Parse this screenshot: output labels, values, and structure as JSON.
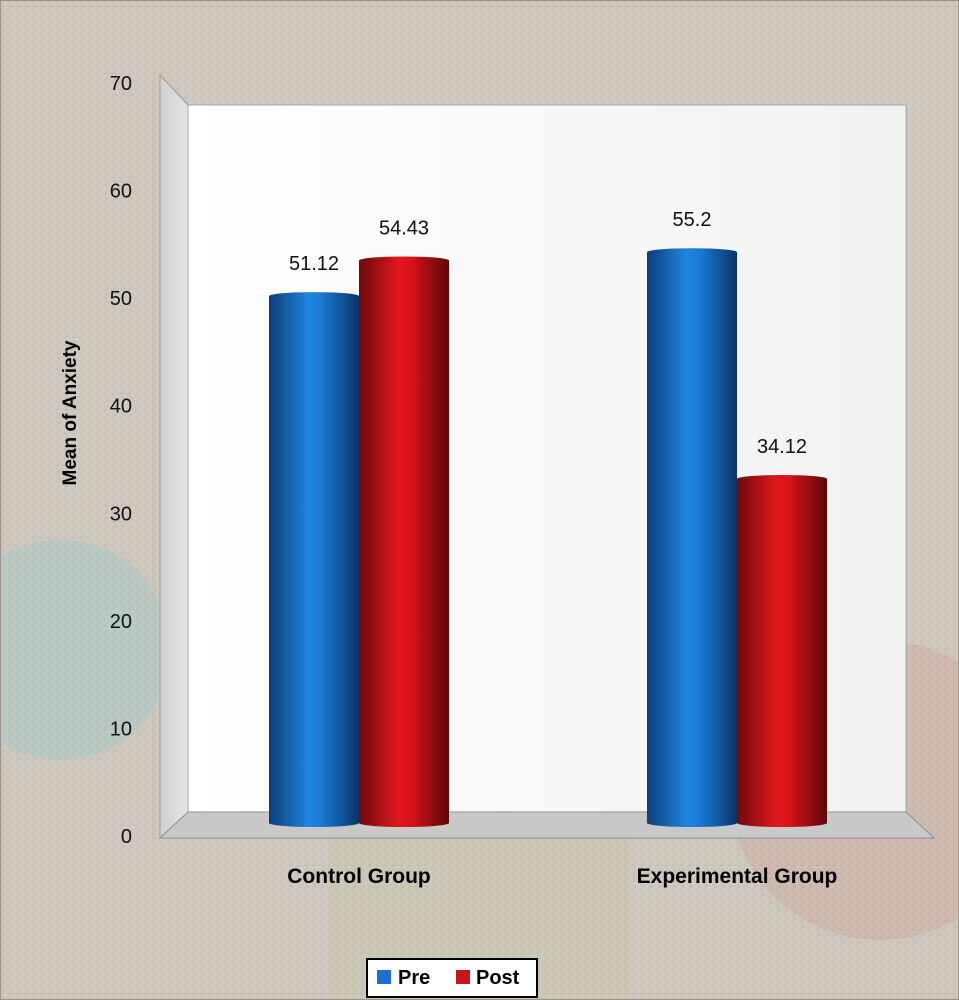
{
  "chart_data": {
    "type": "bar",
    "title": "",
    "xlabel": "",
    "ylabel": "Mean of Anxiety",
    "ylim": [
      0,
      70
    ],
    "yticks": [
      "0",
      "10",
      "20",
      "30",
      "40",
      "50",
      "60",
      "70"
    ],
    "categories": [
      "Control Group",
      "Experimental Group"
    ],
    "series": [
      {
        "name": "Pre",
        "values": [
          51.12,
          55.2
        ],
        "labels": [
          "51.12",
          "55.2"
        ],
        "color": "#1565c0"
      },
      {
        "name": "Post",
        "values": [
          54.43,
          34.12
        ],
        "labels": [
          "54.43",
          "34.12"
        ],
        "color": "#c0141a"
      }
    ],
    "legend_position": "bottom",
    "grid": false
  }
}
